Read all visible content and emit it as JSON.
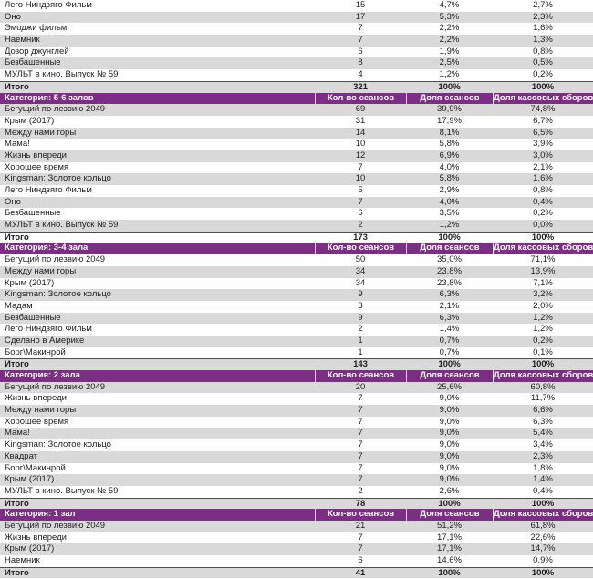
{
  "colors": {
    "header_bg": "#7B2E83",
    "header_text": "#FFFFFF",
    "stripe_gray": "#D9D9D9",
    "text": "#1F1F1F",
    "total_border": "#4D4D4D"
  },
  "table": {
    "column_headers": {
      "count": "Кол-во сеансов",
      "share_sessions": "Доля сеансов",
      "share_boxoffice": "Доля кассовых сборов"
    },
    "total_label": "Итого",
    "sections": [
      {
        "category": "",
        "start_shade": "white",
        "rows": [
          {
            "name": "Лего Ниндзяго Фильм",
            "count": "15",
            "share_sessions": "4,7%",
            "share_boxoffice": "2,7%"
          },
          {
            "name": "Оно",
            "count": "17",
            "share_sessions": "5,3%",
            "share_boxoffice": "2,3%"
          },
          {
            "name": "Эмоджи фильм",
            "count": "7",
            "share_sessions": "2,2%",
            "share_boxoffice": "1,6%"
          },
          {
            "name": "Наемник",
            "count": "7",
            "share_sessions": "2,2%",
            "share_boxoffice": "1,3%"
          },
          {
            "name": "Дозор джунглей",
            "count": "6",
            "share_sessions": "1,9%",
            "share_boxoffice": "0,8%"
          },
          {
            "name": "Безбашенные",
            "count": "8",
            "share_sessions": "2,5%",
            "share_boxoffice": "0,5%"
          },
          {
            "name": "МУЛЬТ в кино. Выпуск № 59",
            "count": "4",
            "share_sessions": "1,2%",
            "share_boxoffice": "0,2%"
          }
        ],
        "total": {
          "count": "321",
          "share_sessions": "100%",
          "share_boxoffice": "100%"
        }
      },
      {
        "category": "Категория: 5-6 залов",
        "start_shade": "gray",
        "rows": [
          {
            "name": "Бегущий по лезвию 2049",
            "count": "69",
            "share_sessions": "39,9%",
            "share_boxoffice": "74,8%"
          },
          {
            "name": "Крым (2017)",
            "count": "31",
            "share_sessions": "17,9%",
            "share_boxoffice": "6,7%"
          },
          {
            "name": "Между нами горы",
            "count": "14",
            "share_sessions": "8,1%",
            "share_boxoffice": "6,5%"
          },
          {
            "name": "Мама!",
            "count": "10",
            "share_sessions": "5,8%",
            "share_boxoffice": "3,9%"
          },
          {
            "name": "Жизнь впереди",
            "count": "12",
            "share_sessions": "6,9%",
            "share_boxoffice": "3,0%"
          },
          {
            "name": "Хорошее время",
            "count": "7",
            "share_sessions": "4,0%",
            "share_boxoffice": "2,1%"
          },
          {
            "name": "Kingsman: Золотое кольцо",
            "count": "10",
            "share_sessions": "5,8%",
            "share_boxoffice": "1,6%"
          },
          {
            "name": "Лего Ниндзяго Фильм",
            "count": "5",
            "share_sessions": "2,9%",
            "share_boxoffice": "0,8%"
          },
          {
            "name": "Оно",
            "count": "7",
            "share_sessions": "4,0%",
            "share_boxoffice": "0,4%"
          },
          {
            "name": "Безбашенные",
            "count": "6",
            "share_sessions": "3,5%",
            "share_boxoffice": "0,2%"
          },
          {
            "name": "МУЛЬТ в кино. Выпуск № 59",
            "count": "2",
            "share_sessions": "1,2%",
            "share_boxoffice": "0,0%"
          }
        ],
        "total": {
          "count": "173",
          "share_sessions": "100%",
          "share_boxoffice": "100%"
        }
      },
      {
        "category": "Категория: 3-4 зала",
        "start_shade": "white",
        "rows": [
          {
            "name": "Бегущий по лезвию 2049",
            "count": "50",
            "share_sessions": "35,0%",
            "share_boxoffice": "71,1%"
          },
          {
            "name": "Между нами горы",
            "count": "34",
            "share_sessions": "23,8%",
            "share_boxoffice": "13,9%"
          },
          {
            "name": "Крым (2017)",
            "count": "34",
            "share_sessions": "23,8%",
            "share_boxoffice": "7,1%"
          },
          {
            "name": "Kingsman: Золотое кольцо",
            "count": "9",
            "share_sessions": "6,3%",
            "share_boxoffice": "3,2%"
          },
          {
            "name": "Мадам",
            "count": "3",
            "share_sessions": "2,1%",
            "share_boxoffice": "2,0%"
          },
          {
            "name": "Безбашенные",
            "count": "9",
            "share_sessions": "6,3%",
            "share_boxoffice": "1,2%"
          },
          {
            "name": "Лего Ниндзяго Фильм",
            "count": "2",
            "share_sessions": "1,4%",
            "share_boxoffice": "1,2%"
          },
          {
            "name": "Сделано в Америке",
            "count": "1",
            "share_sessions": "0,7%",
            "share_boxoffice": "0,2%"
          },
          {
            "name": "Борг\\Макинрой",
            "count": "1",
            "share_sessions": "0,7%",
            "share_boxoffice": "0,1%"
          }
        ],
        "total": {
          "count": "143",
          "share_sessions": "100%",
          "share_boxoffice": "100%"
        }
      },
      {
        "category": "Категория: 2 зала",
        "start_shade": "gray",
        "rows": [
          {
            "name": "Бегущий по лезвию 2049",
            "count": "20",
            "share_sessions": "25,6%",
            "share_boxoffice": "60,8%"
          },
          {
            "name": "Жизнь впереди",
            "count": "7",
            "share_sessions": "9,0%",
            "share_boxoffice": "11,7%"
          },
          {
            "name": "Между нами горы",
            "count": "7",
            "share_sessions": "9,0%",
            "share_boxoffice": "6,6%"
          },
          {
            "name": "Хорошее время",
            "count": "7",
            "share_sessions": "9,0%",
            "share_boxoffice": "6,3%"
          },
          {
            "name": "Мама!",
            "count": "7",
            "share_sessions": "9,0%",
            "share_boxoffice": "5,4%"
          },
          {
            "name": "Kingsman: Золотое кольцо",
            "count": "7",
            "share_sessions": "9,0%",
            "share_boxoffice": "3,4%"
          },
          {
            "name": "Квадрат",
            "count": "7",
            "share_sessions": "9,0%",
            "share_boxoffice": "2,3%"
          },
          {
            "name": "Борг\\Макинрой",
            "count": "7",
            "share_sessions": "9,0%",
            "share_boxoffice": "1,8%"
          },
          {
            "name": "Крым (2017)",
            "count": "7",
            "share_sessions": "9,0%",
            "share_boxoffice": "1,4%"
          },
          {
            "name": "МУЛЬТ в кино. Выпуск № 59",
            "count": "2",
            "share_sessions": "2,6%",
            "share_boxoffice": "0,4%"
          }
        ],
        "total": {
          "count": "78",
          "share_sessions": "100%",
          "share_boxoffice": "100%"
        }
      },
      {
        "category": "Категория: 1 зал",
        "start_shade": "gray",
        "rows": [
          {
            "name": "Бегущий по лезвию 2049",
            "count": "21",
            "share_sessions": "51,2%",
            "share_boxoffice": "61,8%"
          },
          {
            "name": "Жизнь впереди",
            "count": "7",
            "share_sessions": "17,1%",
            "share_boxoffice": "22,6%"
          },
          {
            "name": "Крым (2017)",
            "count": "7",
            "share_sessions": "17,1%",
            "share_boxoffice": "14,7%"
          },
          {
            "name": "Наемник",
            "count": "6",
            "share_sessions": "14,6%",
            "share_boxoffice": "0,9%"
          }
        ],
        "total": {
          "count": "41",
          "share_sessions": "100%",
          "share_boxoffice": "100%"
        }
      }
    ]
  }
}
